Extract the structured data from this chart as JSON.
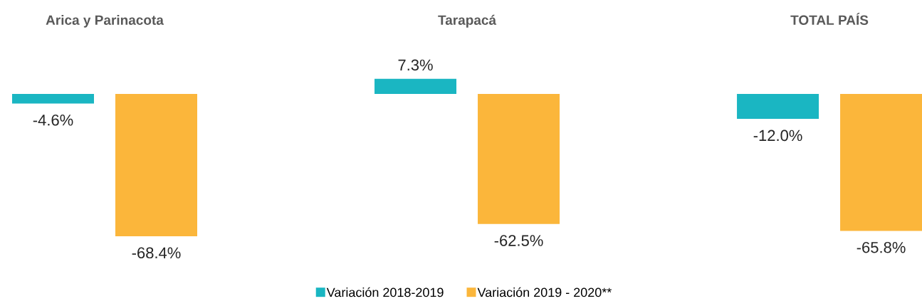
{
  "chart_data": {
    "type": "bar",
    "categories": [
      "Arica y Parinacota",
      "Tarapacá",
      "TOTAL PAÍS"
    ],
    "series": [
      {
        "name": "Variación 2018-2019",
        "color": "#1ab6c2",
        "values": [
          -4.6,
          7.3,
          -12.0
        ],
        "value_labels": [
          "-4.6%",
          "7.3%",
          "-12.0%"
        ]
      },
      {
        "name": "Variación 2019 - 2020**",
        "color": "#fbb63b",
        "values": [
          -68.4,
          -62.5,
          -65.8
        ],
        "value_labels": [
          "-68.4%",
          "-62.5%",
          "-65.8%"
        ]
      }
    ],
    "legend": "bottom"
  }
}
